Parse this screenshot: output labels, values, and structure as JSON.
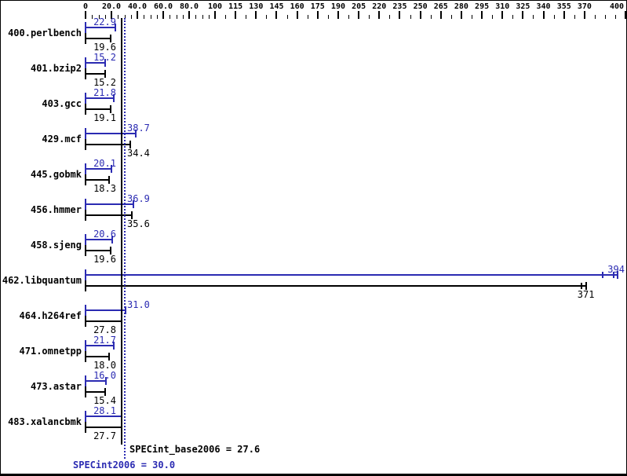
{
  "chart_data": {
    "type": "bar",
    "orientation": "horizontal",
    "title": "",
    "xlabel": "",
    "ylabel": "",
    "axis": {
      "range": [
        0,
        400
      ],
      "grid": false,
      "major_ticks": [
        {
          "value": 0,
          "label": "0"
        },
        {
          "value": 20,
          "label": "20.0"
        },
        {
          "value": 40,
          "label": "40.0"
        },
        {
          "value": 60,
          "label": "60.0"
        },
        {
          "value": 80,
          "label": "80.0"
        },
        {
          "value": 100,
          "label": "100"
        },
        {
          "value": 115,
          "label": "115"
        },
        {
          "value": 130,
          "label": "130"
        },
        {
          "value": 145,
          "label": "145"
        },
        {
          "value": 160,
          "label": "160"
        },
        {
          "value": 175,
          "label": "175"
        },
        {
          "value": 190,
          "label": "190"
        },
        {
          "value": 205,
          "label": "205"
        },
        {
          "value": 220,
          "label": "220"
        },
        {
          "value": 235,
          "label": "235"
        },
        {
          "value": 250,
          "label": "250"
        },
        {
          "value": 265,
          "label": "265"
        },
        {
          "value": 280,
          "label": "280"
        },
        {
          "value": 295,
          "label": "295"
        },
        {
          "value": 310,
          "label": "310"
        },
        {
          "value": 325,
          "label": "325"
        },
        {
          "value": 340,
          "label": "340"
        },
        {
          "value": 355,
          "label": "355"
        },
        {
          "value": 370,
          "label": "370"
        },
        {
          "value": 400,
          "label": "400"
        }
      ],
      "minor_step_below_100": 5,
      "minor_step_above_100": 7.5
    },
    "series": [
      {
        "name": "SPECint2006 (peak)",
        "key": "peak",
        "color": "#2b2bb2"
      },
      {
        "name": "SPECint_base2006 (base)",
        "key": "base",
        "color": "#000000"
      }
    ],
    "benchmarks": [
      {
        "name": "400.perlbench",
        "peak": 22.9,
        "peak_label": "22.9",
        "base": 19.6,
        "base_label": "19.6"
      },
      {
        "name": "401.bzip2",
        "peak": 15.2,
        "peak_label": "15.2",
        "base": 15.2,
        "base_label": "15.2"
      },
      {
        "name": "403.gcc",
        "peak": 21.8,
        "peak_label": "21.8",
        "base": 19.1,
        "base_label": "19.1"
      },
      {
        "name": "429.mcf",
        "peak": 38.7,
        "peak_label": "38.7",
        "base": 34.4,
        "base_label": "34.4"
      },
      {
        "name": "445.gobmk",
        "peak": 20.1,
        "peak_label": "20.1",
        "base": 18.3,
        "base_label": "18.3"
      },
      {
        "name": "456.hmmer",
        "peak": 36.9,
        "peak_label": "36.9",
        "base": 35.6,
        "base_label": "35.6"
      },
      {
        "name": "458.sjeng",
        "peak": 20.6,
        "peak_label": "20.6",
        "base": 19.6,
        "base_label": "19.6"
      },
      {
        "name": "462.libquantum",
        "peak": 394,
        "peak_label": "394",
        "base": 371,
        "base_label": "371",
        "peak_run_ticks": [
          383.5,
          391.5
        ],
        "base_run_ticks": [
          368
        ]
      },
      {
        "name": "464.h264ref",
        "peak": 31.0,
        "peak_label": "31.0",
        "base": 27.8,
        "base_label": "27.8"
      },
      {
        "name": "471.omnetpp",
        "peak": 21.7,
        "peak_label": "21.7",
        "base": 18.0,
        "base_label": "18.0"
      },
      {
        "name": "473.astar",
        "peak": 16.0,
        "peak_label": "16.0",
        "base": 15.4,
        "base_label": "15.4"
      },
      {
        "name": "483.xalancbmk",
        "peak": 28.1,
        "peak_label": "28.1",
        "base": 27.7,
        "base_label": "27.7"
      }
    ],
    "summary": {
      "base_text": "SPECint_base2006 = 27.6",
      "base_value": 27.6,
      "peak_text": "SPECint2006 = 30.0",
      "peak_value": 30.0
    },
    "colors": {
      "peak_blue": "#2b2bb2",
      "base_black": "#000000",
      "background": "#ffffff"
    }
  }
}
